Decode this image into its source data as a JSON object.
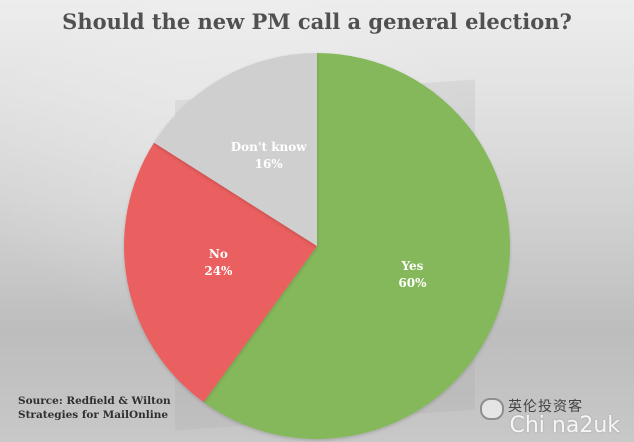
{
  "title": "Should the new PM call a general election?",
  "source": {
    "line1": "Source: Redfield & Wilton",
    "line2": "Strategies for MailOnline"
  },
  "watermark": {
    "chinese": "英伦投资客",
    "latin": "Chi na2uk"
  },
  "chart_data": {
    "type": "pie",
    "title": "Should the new PM call a general election?",
    "slices": [
      {
        "label": "Yes",
        "value": 60,
        "display": "60%",
        "color": "#84b85a"
      },
      {
        "label": "No",
        "value": 24,
        "display": "24%",
        "color": "#ea5f5f"
      },
      {
        "label": "Don't know",
        "value": 16,
        "display": "16%",
        "color": "#cfcfcf"
      }
    ]
  }
}
